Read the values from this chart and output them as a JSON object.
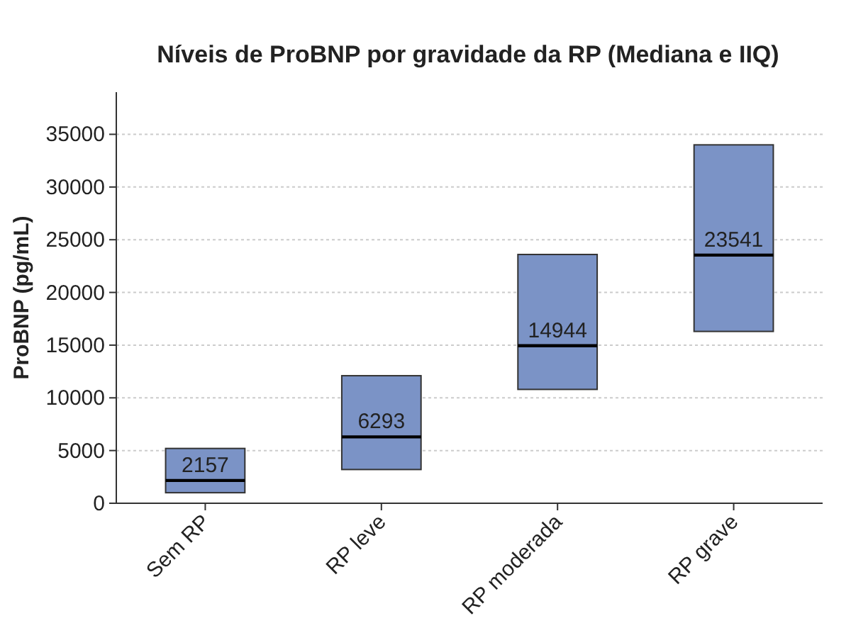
{
  "chart_data": {
    "type": "box",
    "title": "Níveis de ProBNP por gravidade da RP (Mediana e IIQ)",
    "ylabel": "ProBNP (pg/mL)",
    "categories": [
      "Sem RP",
      "RP leve",
      "RP moderada",
      "RP grave"
    ],
    "boxes": [
      {
        "low": 1000,
        "q1": 1000,
        "median": 2157,
        "q3": 5200,
        "high": 5200
      },
      {
        "low": 3200,
        "q1": 3200,
        "median": 6293,
        "q3": 12100,
        "high": 12100
      },
      {
        "low": 10800,
        "q1": 10800,
        "median": 14944,
        "q3": 23600,
        "high": 23600
      },
      {
        "low": 16300,
        "q1": 16300,
        "median": 23541,
        "q3": 34000,
        "high": 34000
      }
    ],
    "color": "#7b93c6",
    "ylim": [
      0,
      39000
    ],
    "yticks": [
      0,
      5000,
      10000,
      15000,
      20000,
      25000,
      30000,
      35000
    ],
    "grid": "y",
    "value_labels": [
      "2157",
      "6293",
      "14944",
      "23541"
    ]
  }
}
